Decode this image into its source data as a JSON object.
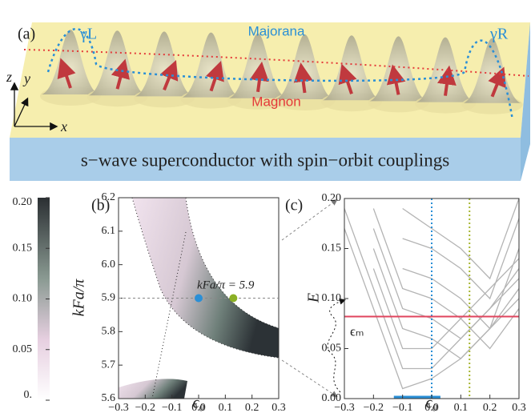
{
  "illustration": {
    "label": "(a)",
    "gamma_left": "γL",
    "gamma_right": "γR",
    "majorana": "Majorana",
    "magnon": "Magnon",
    "axis_z": "z",
    "axis_y": "y",
    "axis_x": "x",
    "substrate": "s−wave superconductor with spin−orbit couplings"
  },
  "chart_data": [
    {
      "type": "heatmap",
      "label": "(b)",
      "ylabel": "kFa/π",
      "xlabel": "ϵ₀",
      "annotation": "kFa/π = 5.9",
      "xlim": [
        -0.3,
        0.3
      ],
      "ylim": [
        5.6,
        6.2
      ],
      "xticks": [
        {
          "value": -0.3,
          "label": "−0.3"
        },
        {
          "value": -0.2,
          "label": "−0.2"
        },
        {
          "value": -0.1,
          "label": "−0.1"
        },
        {
          "value": 0,
          "label": "0.0"
        },
        0.1,
        0.2,
        0.3
      ],
      "yticks": [
        5.6,
        5.7,
        5.8,
        5.9,
        {
          "value": 6,
          "label": "6.0"
        },
        6.1,
        6.2
      ],
      "points": [
        {
          "x": 0,
          "y": 5.9,
          "color": "#2a8fd6"
        },
        {
          "x": 0.13,
          "y": 5.9,
          "color": "#8bb026"
        }
      ],
      "colorbar": {
        "lim": [
          0,
          0.2
        ],
        "ticks": [
          {
            "value": 0.2,
            "label": "0.20"
          },
          0.15,
          {
            "value": 0.1,
            "label": "0.10"
          },
          0.05,
          {
            "value": 0,
            "label": "0."
          }
        ]
      }
    },
    {
      "type": "line",
      "label": "(c)",
      "ylabel": "E",
      "xlabel": "ϵ₀",
      "xlim": [
        -0.3,
        0.3
      ],
      "ylim": [
        0,
        0.2
      ],
      "xticks": [
        {
          "value": -0.3,
          "label": "−0.3"
        },
        {
          "value": -0.2,
          "label": "−0.2"
        },
        {
          "value": -0.1,
          "label": "−0.1"
        },
        {
          "value": 0,
          "label": "0.0"
        },
        0.1,
        0.2,
        0.3
      ],
      "yticks": [
        {
          "value": 0,
          "label": "0.00"
        },
        0.05,
        {
          "value": 0.1,
          "label": "0.10"
        },
        0.15,
        {
          "value": 0.2,
          "label": "0.20"
        }
      ],
      "x": [
        -0.3,
        -0.2,
        -0.1,
        0,
        0.1,
        0.2,
        0.3
      ],
      "bands_color": "#b4b4b4",
      "bands": [
        [
          0.17,
          0.09,
          0.01,
          0.02,
          0.04,
          0.07,
          0.1
        ],
        [
          0.19,
          0.11,
          0.03,
          0.03,
          0.06,
          0.09,
          0.12
        ],
        [
          null,
          0.13,
          0.05,
          0.05,
          0.08,
          0.11,
          0.14
        ],
        [
          null,
          0.15,
          0.07,
          0.06,
          0.04,
          0.07,
          0.11
        ],
        [
          null,
          0.17,
          0.09,
          0.08,
          0.06,
          0.09,
          0.13
        ],
        [
          null,
          0.19,
          0.11,
          0.1,
          0.08,
          0.05,
          0.09
        ],
        [
          null,
          null,
          0.13,
          0.12,
          0.1,
          0.07,
          0.15
        ],
        [
          null,
          null,
          0.16,
          0.15,
          0.13,
          0.1,
          0.18
        ],
        [
          null,
          null,
          0.19,
          0.17,
          0.15,
          0.12,
          0.2
        ]
      ],
      "zero_mode": {
        "x": [
          -0.13,
          0.03
        ],
        "values": [
          0,
          0
        ],
        "color": "#2a8fd6"
      },
      "hline": {
        "value": 0.082,
        "color": "#e0455e",
        "label": "ϵₘ"
      },
      "vlines": [
        {
          "value": 0,
          "color": "#2a8fd6"
        },
        {
          "value": 0.13,
          "color": "#a6b530"
        }
      ]
    }
  ]
}
